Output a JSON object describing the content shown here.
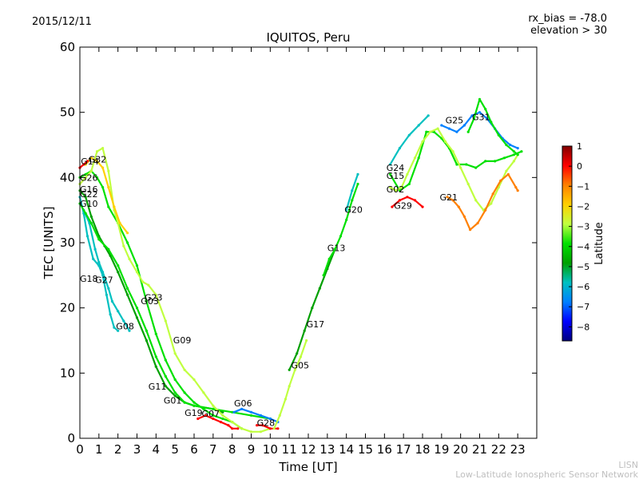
{
  "header": {
    "date": "2015/12/11",
    "rx_bias": "rx_bias = -78.0",
    "elevation": "elevation > 30"
  },
  "footer": {
    "line1": "LISN",
    "line2": "Low-Latitude Ionospheric Sensor Network"
  },
  "colors": {
    "background": "#ffffff",
    "axis": "#000000",
    "footer_text": "#bfbfbf",
    "colormap": [
      "#00007f",
      "#0000ff",
      "#0080ff",
      "#00c0c0",
      "#00a000",
      "#00e000",
      "#c0ff40",
      "#ffd000",
      "#ff8000",
      "#ff0000",
      "#800000"
    ]
  },
  "chart_data": {
    "type": "scatter",
    "title": "IQUITOS, Peru",
    "xlabel": "Time [UT]",
    "ylabel": "TEC [UNITS]",
    "xlim": [
      0,
      24
    ],
    "ylim": [
      0,
      60
    ],
    "xticks": [
      0,
      1,
      2,
      3,
      4,
      5,
      6,
      7,
      8,
      9,
      10,
      11,
      12,
      13,
      14,
      15,
      16,
      17,
      18,
      19,
      20,
      21,
      22,
      23
    ],
    "yticks": [
      0,
      10,
      20,
      30,
      40,
      50,
      60
    ],
    "grid": false,
    "colorbar": {
      "label": "Latitude",
      "range": [
        -8.7,
        1.0
      ],
      "ticks": [
        1,
        0,
        -1,
        -2,
        -3,
        -4,
        -5,
        -6,
        -7,
        -8
      ],
      "tick_labels": [
        "1",
        "0",
        "−1",
        "−2",
        "−3",
        "−4",
        "−5",
        "−6",
        "−7",
        "−8"
      ]
    },
    "series": [
      {
        "name": "G18",
        "color": "#00c0c0",
        "x": [
          0.0,
          0.2,
          0.4,
          0.7,
          1.0,
          1.2,
          1.4,
          1.6,
          1.8,
          2.0
        ],
        "y": [
          37.0,
          34.5,
          31.0,
          27.5,
          26.5,
          25.0,
          22.0,
          19.0,
          17.0,
          16.5
        ]
      },
      {
        "name": "G27",
        "color": "#00c0c0",
        "x": [
          0.2,
          0.5,
          0.8,
          1.0,
          1.2,
          1.5,
          1.7,
          2.0,
          2.3,
          2.6
        ],
        "y": [
          35.0,
          33.0,
          29.0,
          27.0,
          25.5,
          23.0,
          21.0,
          19.5,
          18.0,
          16.5
        ]
      },
      {
        "name": "G22",
        "color": "#00a000",
        "x": [
          0.0,
          0.3,
          0.6,
          1.0,
          1.3,
          1.6,
          2.0,
          2.5,
          3.0,
          3.5,
          4.0,
          4.5,
          5.0,
          5.5,
          6.0,
          7.0,
          7.5
        ],
        "y": [
          38.0,
          37.0,
          34.0,
          31.0,
          29.5,
          28.0,
          25.5,
          22.0,
          18.5,
          15.0,
          11.0,
          8.0,
          6.5,
          5.5,
          5.0,
          4.5,
          4.0
        ]
      },
      {
        "name": "G10",
        "color": "#00e000",
        "x": [
          0.0,
          0.3,
          0.6,
          1.0,
          1.5,
          2.0,
          2.5,
          3.0,
          3.5,
          4.0,
          4.5,
          5.0,
          5.5,
          6.0,
          7.0,
          8.0,
          9.0,
          10.0
        ],
        "y": [
          36.0,
          34.5,
          33.0,
          30.5,
          29.0,
          26.5,
          23.0,
          20.0,
          16.5,
          12.5,
          9.5,
          7.0,
          5.5,
          5.0,
          4.5,
          4.0,
          3.5,
          3.0
        ]
      },
      {
        "name": "G26",
        "color": "#00e000",
        "x": [
          0.0,
          0.3,
          0.6,
          0.9,
          1.2,
          1.5,
          2.0,
          2.5,
          3.0,
          3.5,
          4.0,
          4.5,
          5.0,
          5.5,
          6.0,
          6.5,
          7.0,
          7.5,
          8.0,
          8.5
        ],
        "y": [
          40.0,
          40.5,
          41.0,
          40.0,
          38.5,
          35.5,
          33.0,
          30.0,
          26.5,
          21.0,
          16.0,
          12.0,
          9.0,
          7.0,
          5.5,
          4.5,
          3.5,
          3.0,
          2.5,
          1.5
        ]
      },
      {
        "name": "G16",
        "color": "#c0ff40",
        "x": [
          0.0,
          0.3,
          0.6,
          0.9,
          1.2,
          1.5,
          1.8,
          2.0,
          2.3,
          2.6,
          3.0,
          3.3,
          3.6,
          4.0,
          4.5,
          5.0,
          5.5,
          6.0,
          6.5,
          7.0,
          7.5,
          8.0,
          8.5,
          9.0,
          9.5,
          10.0
        ],
        "y": [
          39.0,
          40.0,
          41.0,
          44.0,
          44.5,
          41.0,
          35.0,
          33.0,
          29.5,
          27.5,
          25.5,
          24.0,
          23.5,
          22.0,
          18.0,
          13.0,
          10.5,
          9.0,
          7.0,
          5.0,
          3.5,
          2.5,
          1.5,
          1.0,
          1.0,
          1.5
        ]
      },
      {
        "name": "G32",
        "color": "#ffd000",
        "x": [
          0.3,
          0.6,
          0.9,
          1.2,
          1.5,
          1.8,
          2.1,
          2.5
        ],
        "y": [
          42.0,
          43.0,
          42.5,
          41.5,
          38.5,
          35.5,
          33.0,
          31.5
        ]
      },
      {
        "name": "G14",
        "color": "#ff0000",
        "x": [
          0.0,
          0.2,
          0.4
        ],
        "y": [
          41.5,
          42.0,
          42.5
        ]
      },
      {
        "name": "G06",
        "color": "#0080ff",
        "x": [
          8.1,
          8.5,
          9.0,
          9.5,
          10.0,
          10.4
        ],
        "y": [
          4.0,
          4.5,
          4.0,
          3.5,
          3.0,
          2.5
        ]
      },
      {
        "name": "G07",
        "color": "#ff0000",
        "x": [
          6.2,
          6.6,
          7.0,
          7.4,
          7.8,
          8.0,
          8.3
        ],
        "y": [
          3.0,
          3.5,
          3.0,
          2.5,
          2.0,
          1.5,
          1.5
        ]
      },
      {
        "name": "G28",
        "color": "#ff0000",
        "x": [
          9.3,
          9.6,
          10.0,
          10.4
        ],
        "y": [
          2.0,
          2.0,
          1.5,
          1.5
        ]
      },
      {
        "name": "G05",
        "color": "#c0ff40",
        "x": [
          10.2,
          10.5,
          10.8,
          11.0,
          11.3,
          11.6,
          11.9
        ],
        "y": [
          1.5,
          3.5,
          6.0,
          8.0,
          10.5,
          12.5,
          15.0
        ]
      },
      {
        "name": "G17",
        "color": "#00a000",
        "x": [
          11.0,
          11.4,
          11.8,
          12.2,
          12.6,
          13.0,
          13.4
        ],
        "y": [
          10.5,
          13.0,
          16.5,
          20.0,
          23.0,
          26.0,
          29.0
        ]
      },
      {
        "name": "G13",
        "color": "#00e000",
        "x": [
          12.8,
          13.1,
          13.4,
          13.7,
          14.0,
          14.3,
          14.6
        ],
        "y": [
          25.0,
          27.5,
          29.0,
          31.0,
          33.5,
          36.5,
          39.0
        ]
      },
      {
        "name": "G20",
        "color": "#00c0c0",
        "x": [
          14.0,
          14.3,
          14.6
        ],
        "y": [
          35.0,
          38.0,
          40.5
        ]
      },
      {
        "name": "G24",
        "color": "#00c0c0",
        "x": [
          16.3,
          16.8,
          17.3,
          17.8,
          18.3
        ],
        "y": [
          42.0,
          44.5,
          46.5,
          48.0,
          49.5
        ]
      },
      {
        "name": "G15",
        "color": "#00e000",
        "x": [
          16.3,
          16.8,
          17.3,
          17.8,
          18.2,
          18.6,
          19.0,
          19.4,
          19.8,
          20.3,
          20.8,
          21.3,
          21.8,
          22.3,
          22.8,
          23.2
        ],
        "y": [
          40.5,
          38.0,
          39.0,
          43.0,
          47.0,
          47.0,
          46.0,
          44.5,
          42.0,
          42.0,
          41.5,
          42.5,
          42.5,
          43.0,
          43.5,
          44.0
        ]
      },
      {
        "name": "G02",
        "color": "#c0ff40",
        "x": [
          16.3,
          16.6,
          16.9,
          17.2,
          17.6,
          18.0,
          18.4,
          18.8,
          19.2,
          19.6,
          20.0,
          20.4,
          20.8,
          21.2,
          21.6,
          22.0,
          22.4,
          22.8,
          23.0
        ],
        "y": [
          38.5,
          38.0,
          38.5,
          40.5,
          43.0,
          45.5,
          47.0,
          47.5,
          45.5,
          44.0,
          41.5,
          39.0,
          36.5,
          35.0,
          36.0,
          38.5,
          41.0,
          42.5,
          43.5
        ]
      },
      {
        "name": "G29",
        "color": "#ff0000",
        "x": [
          16.4,
          16.8,
          17.2,
          17.6,
          18.0
        ],
        "y": [
          35.5,
          36.5,
          37.0,
          36.5,
          35.5
        ]
      },
      {
        "name": "G21",
        "color": "#ff8000",
        "x": [
          19.3,
          19.6,
          19.9,
          20.2,
          20.5,
          20.9,
          21.3,
          21.7,
          22.1,
          22.5,
          22.9,
          23.0
        ],
        "y": [
          37.0,
          36.5,
          35.5,
          34.0,
          32.0,
          33.0,
          35.0,
          37.5,
          39.5,
          40.5,
          38.5,
          38.0
        ]
      },
      {
        "name": "G25",
        "color": "#0080ff",
        "x": [
          19.0,
          19.4,
          19.8,
          20.2,
          20.6,
          21.0,
          21.4,
          21.8,
          22.2,
          22.6,
          23.0
        ],
        "y": [
          48.0,
          47.5,
          47.0,
          48.0,
          49.5,
          50.0,
          49.0,
          47.5,
          46.0,
          45.0,
          44.5
        ]
      },
      {
        "name": "G31",
        "color": "#00e000",
        "x": [
          20.4,
          20.7,
          21.0,
          21.3,
          21.6,
          22.0,
          22.4,
          22.8,
          23.0
        ],
        "y": [
          47.0,
          49.0,
          52.0,
          50.5,
          48.5,
          46.5,
          45.0,
          44.0,
          43.5
        ]
      }
    ],
    "labels": [
      {
        "text": "G14",
        "x": 0.05,
        "y": 42.0
      },
      {
        "text": "G32",
        "x": 0.45,
        "y": 42.3
      },
      {
        "text": "G26",
        "x": 0.0,
        "y": 39.5
      },
      {
        "text": "G16",
        "x": 0.0,
        "y": 37.7
      },
      {
        "text": "G22",
        "x": 0.0,
        "y": 37.0
      },
      {
        "text": "G10",
        "x": 0.0,
        "y": 35.5
      },
      {
        "text": "G18",
        "x": 0.0,
        "y": 24.0
      },
      {
        "text": "G27",
        "x": 0.8,
        "y": 23.8
      },
      {
        "text": "G08",
        "x": 1.9,
        "y": 16.7
      },
      {
        "text": "G03",
        "x": 3.2,
        "y": 20.6
      },
      {
        "text": "G23",
        "x": 3.4,
        "y": 21.1
      },
      {
        "text": "G09",
        "x": 4.9,
        "y": 14.6
      },
      {
        "text": "G11",
        "x": 3.6,
        "y": 7.5
      },
      {
        "text": "G01",
        "x": 4.4,
        "y": 5.3
      },
      {
        "text": "G19",
        "x": 5.5,
        "y": 3.4
      },
      {
        "text": "G07",
        "x": 6.4,
        "y": 3.3
      },
      {
        "text": "G06",
        "x": 8.1,
        "y": 4.9
      },
      {
        "text": "G28",
        "x": 9.3,
        "y": 1.9
      },
      {
        "text": "G05",
        "x": 11.1,
        "y": 10.7
      },
      {
        "text": "G17",
        "x": 11.9,
        "y": 17.0
      },
      {
        "text": "G13",
        "x": 13.0,
        "y": 28.7
      },
      {
        "text": "G20",
        "x": 13.9,
        "y": 34.6
      },
      {
        "text": "G24",
        "x": 16.1,
        "y": 41.0
      },
      {
        "text": "G15",
        "x": 16.1,
        "y": 39.8
      },
      {
        "text": "G02",
        "x": 16.1,
        "y": 37.7
      },
      {
        "text": "G29",
        "x": 16.5,
        "y": 35.2
      },
      {
        "text": "G21",
        "x": 18.9,
        "y": 36.5
      },
      {
        "text": "G25",
        "x": 19.2,
        "y": 48.3
      },
      {
        "text": "G31",
        "x": 20.6,
        "y": 48.8
      }
    ]
  }
}
